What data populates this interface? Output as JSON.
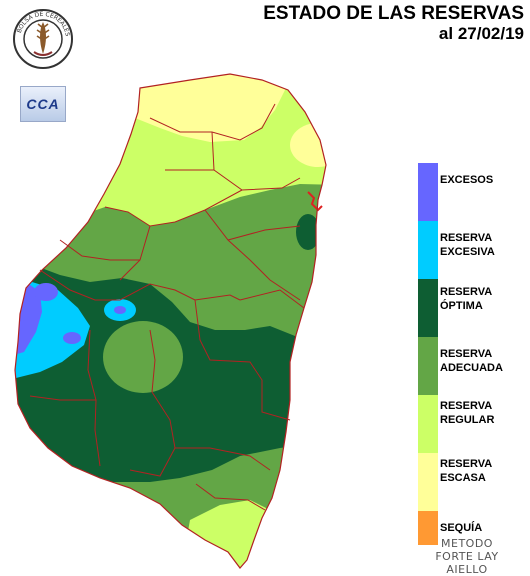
{
  "header": {
    "title_line1": "ESTADO DE LAS RESERVAS",
    "title_line2": "al 27/02/19"
  },
  "logos": {
    "seal_name": "BOLSA DE CEREALES DE ENTRE RIOS",
    "cca_text": "CCA"
  },
  "legend": {
    "items": [
      {
        "label_line1": "EXCESOS",
        "label_line2": "",
        "color": "#6666ff"
      },
      {
        "label_line1": "RESERVA",
        "label_line2": "EXCESIVA",
        "color": "#00ccff"
      },
      {
        "label_line1": "RESERVA",
        "label_line2": "ÓPTIMA",
        "color": "#0e5e33"
      },
      {
        "label_line1": "RESERVA",
        "label_line2": "ADECUADA",
        "color": "#63a646"
      },
      {
        "label_line1": "RESERVA",
        "label_line2": "REGULAR",
        "color": "#ccff66"
      },
      {
        "label_line1": "RESERVA",
        "label_line2": "ESCASA",
        "color": "#ffff99"
      },
      {
        "label_line1": "SEQUÍA",
        "label_line2": "",
        "color": "#ff9933"
      }
    ]
  },
  "method": {
    "line1": "METODO",
    "line2": "FORTE LAY",
    "line3": "AIELLO"
  },
  "colors": {
    "boundary": "#b22222",
    "river_marker": "#dd2222"
  }
}
